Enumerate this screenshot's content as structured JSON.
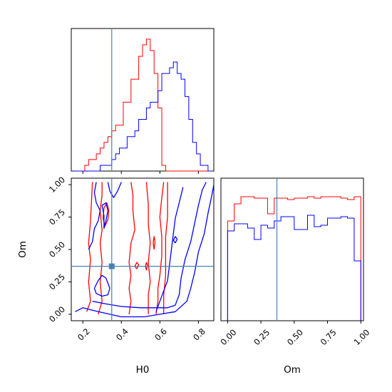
{
  "chart_data": {
    "type": "corner",
    "parameters": [
      "H0",
      "Om"
    ],
    "truth": {
      "H0": 0.35,
      "Om": 0.37
    },
    "colors": {
      "samples_a": "#ff0000",
      "samples_b": "#0000ff",
      "truth": "#4682b4"
    },
    "hist_H0": {
      "xlim": [
        0.14,
        0.88
      ],
      "bin_edges": [
        0.15,
        0.17,
        0.19,
        0.21,
        0.23,
        0.25,
        0.27,
        0.29,
        0.31,
        0.33,
        0.35,
        0.37,
        0.39,
        0.41,
        0.43,
        0.45,
        0.47,
        0.49,
        0.51,
        0.53,
        0.55,
        0.57,
        0.59,
        0.61,
        0.63,
        0.65,
        0.67,
        0.69,
        0.71,
        0.73,
        0.75,
        0.77,
        0.79,
        0.81,
        0.83,
        0.85,
        0.87
      ],
      "series": [
        {
          "color": "red",
          "counts": [
            0,
            0,
            0,
            1,
            2,
            2,
            3,
            4,
            5,
            6,
            7,
            8,
            8,
            12,
            12,
            16,
            16,
            20,
            22,
            23,
            21,
            17,
            11,
            1,
            0,
            0,
            0,
            0,
            0,
            0,
            0,
            0,
            0,
            0,
            0,
            0
          ]
        },
        {
          "color": "blue",
          "counts": [
            0,
            0,
            0,
            0,
            0,
            0,
            0,
            1,
            1,
            1,
            2,
            3,
            4,
            4,
            6,
            6,
            7,
            9,
            9,
            11,
            12,
            12,
            14,
            17,
            17,
            18,
            19,
            17,
            16,
            13,
            9,
            5,
            3,
            1,
            1,
            0
          ]
        }
      ]
    },
    "hist_Om": {
      "xlim": [
        -0.05,
        1.02
      ],
      "bin_edges": [
        0.0,
        0.05,
        0.1,
        0.15,
        0.2,
        0.25,
        0.3,
        0.35,
        0.4,
        0.45,
        0.5,
        0.55,
        0.6,
        0.65,
        0.7,
        0.75,
        0.8,
        0.85,
        0.9,
        0.95,
        1.0
      ],
      "series": [
        {
          "color": "red",
          "counts": [
            0.7,
            0.82,
            0.87,
            0.87,
            0.86,
            0.86,
            0.75,
            0.86,
            0.86,
            0.85,
            0.86,
            0.86,
            0.87,
            0.86,
            0.87,
            0.87,
            0.87,
            0.86,
            0.85,
            0.87
          ]
        },
        {
          "color": "blue",
          "counts": [
            0.63,
            0.68,
            0.68,
            0.65,
            0.57,
            0.67,
            0.65,
            0.7,
            0.73,
            0.73,
            0.64,
            0.64,
            0.74,
            0.66,
            0.67,
            0.72,
            0.72,
            0.73,
            0.72,
            0.42
          ]
        }
      ]
    },
    "scatter_H0_Om": {
      "xlim": [
        0.14,
        0.88
      ],
      "ylim": [
        -0.05,
        1.05
      ],
      "xticks": [
        "0.2",
        "0.4",
        "0.6",
        "0.8"
      ],
      "xtick_values": [
        0.2,
        0.4,
        0.6,
        0.8
      ],
      "yticks": [
        "0.00",
        "0.25",
        "0.50",
        "0.75",
        "1.00"
      ],
      "ytick_values": [
        0.0,
        0.25,
        0.5,
        0.75,
        1.0
      ],
      "xlabel": "H0",
      "ylabel": "Om",
      "contours": [
        {
          "color": "red",
          "points": [
            [
              0.22,
              0.02
            ],
            [
              0.24,
              0.1
            ],
            [
              0.23,
              0.25
            ],
            [
              0.24,
              0.42
            ],
            [
              0.23,
              0.55
            ],
            [
              0.24,
              0.72
            ],
            [
              0.25,
              1.02
            ]
          ]
        },
        {
          "color": "red",
          "points": [
            [
              0.28,
              0.0
            ],
            [
              0.3,
              0.1
            ],
            [
              0.29,
              0.25
            ],
            [
              0.3,
              0.4
            ],
            [
              0.29,
              0.55
            ],
            [
              0.3,
              0.65
            ],
            [
              0.29,
              0.8
            ],
            [
              0.3,
              0.92
            ],
            [
              0.3,
              1.02
            ]
          ]
        },
        {
          "color": "red",
          "points": [
            [
              0.44,
              0.0
            ],
            [
              0.45,
              0.1
            ],
            [
              0.44,
              0.2
            ],
            [
              0.45,
              0.3
            ],
            [
              0.44,
              0.4
            ],
            [
              0.45,
              0.55
            ],
            [
              0.47,
              0.65
            ],
            [
              0.46,
              0.8
            ],
            [
              0.46,
              0.92
            ],
            [
              0.45,
              1.02
            ]
          ]
        },
        {
          "color": "red",
          "points": [
            [
              0.54,
              0.0
            ],
            [
              0.54,
              0.15
            ],
            [
              0.55,
              0.25
            ],
            [
              0.54,
              0.4
            ],
            [
              0.55,
              0.55
            ],
            [
              0.54,
              0.7
            ],
            [
              0.54,
              0.85
            ],
            [
              0.53,
              1.02
            ]
          ]
        },
        {
          "color": "red",
          "points": [
            [
              0.58,
              0.0
            ],
            [
              0.59,
              0.1
            ],
            [
              0.59,
              0.2
            ],
            [
              0.6,
              0.3
            ],
            [
              0.61,
              0.45
            ],
            [
              0.61,
              0.6
            ],
            [
              0.6,
              0.75
            ],
            [
              0.61,
              0.9
            ],
            [
              0.62,
              1.02
            ]
          ]
        },
        {
          "color": "red",
          "points": [
            [
              0.62,
              0.0
            ],
            [
              0.62,
              0.15
            ],
            [
              0.63,
              0.3
            ],
            [
              0.63,
              0.45
            ],
            [
              0.63,
              0.6
            ],
            [
              0.64,
              0.75
            ],
            [
              0.64,
              0.9
            ],
            [
              0.64,
              1.02
            ]
          ]
        },
        {
          "color": "red",
          "points": [
            [
              0.315,
              0.68
            ],
            [
              0.33,
              0.73
            ],
            [
              0.335,
              0.8
            ],
            [
              0.325,
              0.86
            ],
            [
              0.31,
              0.82
            ],
            [
              0.305,
              0.74
            ],
            [
              0.315,
              0.68
            ]
          ]
        },
        {
          "color": "red",
          "points": [
            [
              0.57,
              0.5
            ],
            [
              0.575,
              0.56
            ],
            [
              0.57,
              0.6
            ],
            [
              0.565,
              0.55
            ],
            [
              0.57,
              0.5
            ]
          ]
        },
        {
          "color": "red",
          "points": [
            [
              0.48,
              0.35
            ],
            [
              0.49,
              0.38
            ],
            [
              0.48,
              0.4
            ],
            [
              0.47,
              0.37
            ],
            [
              0.48,
              0.35
            ]
          ]
        },
        {
          "color": "red",
          "points": [
            [
              0.53,
              0.34
            ],
            [
              0.535,
              0.38
            ],
            [
              0.53,
              0.4
            ],
            [
              0.525,
              0.37
            ],
            [
              0.53,
              0.34
            ]
          ]
        },
        {
          "color": "blue",
          "points": [
            [
              0.16,
              0.02
            ],
            [
              0.2,
              0.05
            ],
            [
              0.28,
              0.02
            ],
            [
              0.4,
              -0.02
            ],
            [
              0.52,
              -0.02
            ],
            [
              0.6,
              0.0
            ],
            [
              0.68,
              0.02
            ],
            [
              0.74,
              0.1
            ],
            [
              0.76,
              0.2
            ],
            [
              0.78,
              0.32
            ],
            [
              0.8,
              0.48
            ],
            [
              0.83,
              0.62
            ],
            [
              0.85,
              0.78
            ],
            [
              0.87,
              0.92
            ],
            [
              0.88,
              1.0
            ]
          ]
        },
        {
          "color": "blue",
          "points": [
            [
              0.25,
              0.1
            ],
            [
              0.32,
              0.08
            ],
            [
              0.4,
              0.06
            ],
            [
              0.5,
              0.05
            ],
            [
              0.58,
              0.05
            ],
            [
              0.64,
              0.05
            ],
            [
              0.68,
              0.07
            ],
            [
              0.7,
              0.15
            ],
            [
              0.71,
              0.28
            ],
            [
              0.73,
              0.42
            ],
            [
              0.76,
              0.56
            ],
            [
              0.78,
              0.7
            ],
            [
              0.8,
              0.84
            ],
            [
              0.82,
              0.96
            ],
            [
              0.84,
              1.02
            ]
          ]
        },
        {
          "color": "blue",
          "points": [
            [
              0.58,
              0.02
            ],
            [
              0.6,
              0.1
            ],
            [
              0.62,
              0.18
            ],
            [
              0.64,
              0.26
            ],
            [
              0.65,
              0.38
            ],
            [
              0.66,
              0.5
            ],
            [
              0.67,
              0.62
            ],
            [
              0.68,
              0.74
            ],
            [
              0.7,
              0.86
            ],
            [
              0.72,
              0.98
            ]
          ]
        },
        {
          "color": "blue",
          "points": [
            [
              0.23,
              0.5
            ],
            [
              0.25,
              0.56
            ],
            [
              0.26,
              0.66
            ],
            [
              0.28,
              0.72
            ],
            [
              0.29,
              0.8
            ],
            [
              0.27,
              0.86
            ],
            [
              0.26,
              0.94
            ],
            [
              0.27,
              1.02
            ]
          ]
        },
        {
          "color": "blue",
          "points": [
            [
              0.31,
              0.66
            ],
            [
              0.32,
              0.72
            ],
            [
              0.33,
              0.8
            ],
            [
              0.32,
              0.86
            ],
            [
              0.3,
              0.84
            ],
            [
              0.31,
              0.76
            ],
            [
              0.31,
              0.66
            ]
          ]
        },
        {
          "color": "blue",
          "points": [
            [
              0.33,
              1.02
            ],
            [
              0.34,
              0.95
            ],
            [
              0.36,
              0.9
            ],
            [
              0.38,
              0.95
            ],
            [
              0.4,
              1.02
            ]
          ]
        },
        {
          "color": "blue",
          "points": [
            [
              0.26,
              0.2
            ],
            [
              0.28,
              0.26
            ],
            [
              0.3,
              0.3
            ],
            [
              0.32,
              0.28
            ],
            [
              0.34,
              0.2
            ],
            [
              0.33,
              0.15
            ],
            [
              0.3,
              0.14
            ],
            [
              0.27,
              0.16
            ],
            [
              0.26,
              0.2
            ]
          ]
        },
        {
          "color": "blue",
          "points": [
            [
              0.68,
              0.55
            ],
            [
              0.69,
              0.58
            ],
            [
              0.68,
              0.6
            ],
            [
              0.67,
              0.57
            ],
            [
              0.68,
              0.55
            ]
          ]
        }
      ]
    },
    "om_panel_xticks": [
      "0.00",
      "0.25",
      "0.50",
      "0.75",
      "1.00"
    ],
    "om_panel_xtick_values": [
      0.0,
      0.25,
      0.5,
      0.75,
      1.0
    ],
    "om_panel_xlabel": "Om",
    "h0_hist_xtick_values": [
      0.2,
      0.4,
      0.6,
      0.8
    ]
  }
}
